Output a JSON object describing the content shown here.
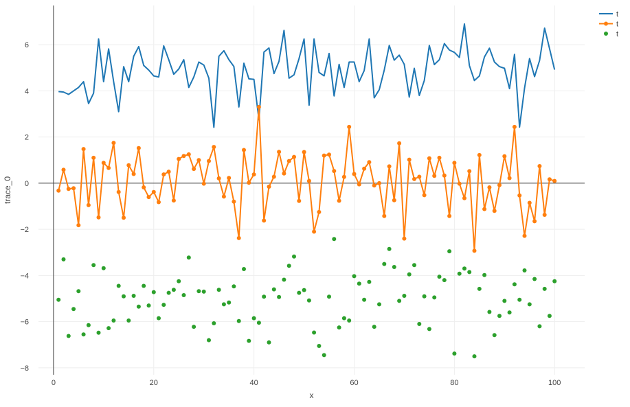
{
  "chart_data": {
    "type": "line",
    "xlabel": "x",
    "ylabel": "trace_0",
    "xlim": [
      -3,
      106
    ],
    "ylim": [
      -8.3,
      7.7
    ],
    "x_ticks": [
      0,
      20,
      40,
      60,
      80,
      100
    ],
    "y_ticks": [
      -8,
      -6,
      -4,
      -2,
      0,
      2,
      4,
      6
    ],
    "grid": true,
    "legend_position": "top-right",
    "series": [
      {
        "name": "t",
        "mode": "lines",
        "color": "#1f77b4",
        "x": [
          1,
          2,
          3,
          4,
          5,
          6,
          7,
          8,
          9,
          10,
          11,
          12,
          13,
          14,
          15,
          16,
          17,
          18,
          19,
          20,
          21,
          22,
          23,
          24,
          25,
          26,
          27,
          28,
          29,
          30,
          31,
          32,
          33,
          34,
          35,
          36,
          37,
          38,
          39,
          40,
          41,
          42,
          43,
          44,
          45,
          46,
          47,
          48,
          49,
          50,
          51,
          52,
          53,
          54,
          55,
          56,
          57,
          58,
          59,
          60,
          61,
          62,
          63,
          64,
          65,
          66,
          67,
          68,
          69,
          70,
          71,
          72,
          73,
          74,
          75,
          76,
          77,
          78,
          79,
          80,
          81,
          82,
          83,
          84,
          85,
          86,
          87,
          88,
          89,
          90,
          91,
          92,
          93,
          94,
          95,
          96,
          97,
          98,
          99,
          100
        ],
        "y": [
          3.97,
          3.95,
          3.85,
          4.0,
          4.15,
          4.4,
          3.45,
          3.9,
          6.25,
          4.4,
          5.82,
          4.4,
          3.1,
          5.05,
          4.4,
          5.5,
          5.92,
          5.1,
          4.9,
          4.65,
          4.6,
          5.95,
          5.35,
          4.72,
          4.95,
          5.35,
          4.15,
          4.6,
          5.25,
          5.12,
          4.55,
          2.42,
          5.5,
          5.74,
          5.35,
          5.06,
          3.3,
          5.2,
          4.52,
          4.5,
          2.75,
          5.68,
          5.86,
          4.75,
          5.28,
          6.62,
          4.55,
          4.7,
          5.4,
          6.25,
          3.38,
          6.25,
          4.8,
          4.65,
          5.62,
          3.78,
          5.15,
          4.15,
          5.25,
          5.25,
          4.4,
          4.88,
          6.25,
          3.7,
          4.05,
          4.9,
          5.97,
          5.33,
          5.55,
          5.15,
          3.73,
          4.98,
          3.8,
          4.45,
          5.97,
          5.14,
          5.35,
          6.05,
          5.77,
          5.67,
          5.45,
          6.9,
          5.1,
          4.45,
          4.65,
          5.47,
          5.85,
          5.25,
          5.05,
          4.98,
          4.1,
          5.58,
          2.43,
          4.12,
          5.4,
          4.62,
          5.32,
          6.72,
          5.83,
          4.92
        ]
      },
      {
        "name": "t",
        "mode": "lines+markers",
        "color": "#ff7f0e",
        "x": [
          1,
          2,
          3,
          4,
          5,
          6,
          7,
          8,
          9,
          10,
          11,
          12,
          13,
          14,
          15,
          16,
          17,
          18,
          19,
          20,
          21,
          22,
          23,
          24,
          25,
          26,
          27,
          28,
          29,
          30,
          31,
          32,
          33,
          34,
          35,
          36,
          37,
          38,
          39,
          40,
          41,
          42,
          43,
          44,
          45,
          46,
          47,
          48,
          49,
          50,
          51,
          52,
          53,
          54,
          55,
          56,
          57,
          58,
          59,
          60,
          61,
          62,
          63,
          64,
          65,
          66,
          67,
          68,
          69,
          70,
          71,
          72,
          73,
          74,
          75,
          76,
          77,
          78,
          79,
          80,
          81,
          82,
          83,
          84,
          85,
          86,
          87,
          88,
          89,
          90,
          91,
          92,
          93,
          94,
          95,
          96,
          97,
          98,
          99,
          100
        ],
        "y": [
          -0.32,
          0.58,
          -0.25,
          -0.22,
          -1.82,
          1.48,
          -0.95,
          1.1,
          -1.48,
          0.88,
          0.66,
          1.75,
          -0.38,
          -1.5,
          0.78,
          0.4,
          1.52,
          -0.18,
          -0.6,
          -0.38,
          -0.82,
          0.38,
          0.5,
          -0.75,
          1.05,
          1.18,
          1.25,
          0.62,
          1.0,
          -0.02,
          0.96,
          1.57,
          0.21,
          -0.58,
          0.23,
          -0.8,
          -2.38,
          1.44,
          0.02,
          0.38,
          3.3,
          -1.62,
          -0.15,
          0.28,
          1.36,
          0.42,
          0.96,
          1.14,
          -0.77,
          1.35,
          0.1,
          -2.1,
          -1.25,
          1.2,
          1.24,
          0.53,
          -0.76,
          0.27,
          2.44,
          0.4,
          -0.05,
          0.63,
          0.91,
          -0.1,
          0.0,
          -1.42,
          0.73,
          -0.74,
          1.73,
          -2.4,
          1.02,
          0.18,
          0.28,
          -0.52,
          1.08,
          0.32,
          1.1,
          0.33,
          -1.42,
          0.88,
          -0.02,
          -0.65,
          0.52,
          -2.93,
          1.22,
          -1.12,
          -0.18,
          -1.2,
          -0.08,
          1.17,
          0.22,
          2.44,
          -0.53,
          -2.28,
          -0.85,
          -1.65,
          0.74,
          -1.37,
          0.17,
          0.1
        ]
      },
      {
        "name": "t",
        "mode": "markers",
        "color": "#2ca02c",
        "x": [
          1,
          2,
          3,
          4,
          5,
          6,
          7,
          8,
          9,
          10,
          11,
          12,
          13,
          14,
          15,
          16,
          17,
          18,
          19,
          20,
          21,
          22,
          23,
          24,
          25,
          26,
          27,
          28,
          29,
          30,
          31,
          32,
          33,
          34,
          35,
          36,
          37,
          38,
          39,
          40,
          41,
          42,
          43,
          44,
          45,
          46,
          47,
          48,
          49,
          50,
          51,
          52,
          53,
          54,
          55,
          56,
          57,
          58,
          59,
          60,
          61,
          62,
          63,
          64,
          65,
          66,
          67,
          68,
          69,
          70,
          71,
          72,
          73,
          74,
          75,
          76,
          77,
          78,
          79,
          80,
          81,
          82,
          83,
          84,
          85,
          86,
          87,
          88,
          89,
          90,
          91,
          92,
          93,
          94,
          95,
          96,
          97,
          98,
          99,
          100
        ],
        "y": [
          -5.05,
          -3.3,
          -6.62,
          -5.45,
          -4.68,
          -6.55,
          -6.15,
          -3.55,
          -6.48,
          -3.68,
          -6.28,
          -5.95,
          -4.45,
          -4.9,
          -5.95,
          -4.88,
          -5.35,
          -4.45,
          -5.3,
          -4.72,
          -5.85,
          -5.27,
          -4.75,
          -4.62,
          -4.25,
          -4.85,
          -3.22,
          -6.22,
          -4.68,
          -4.7,
          -6.8,
          -6.07,
          -4.62,
          -5.25,
          -5.17,
          -4.47,
          -5.97,
          -3.72,
          -6.83,
          -5.85,
          -6.05,
          -4.92,
          -6.9,
          -4.6,
          -4.93,
          -4.18,
          -3.58,
          -3.18,
          -4.75,
          -4.63,
          -5.08,
          -6.47,
          -7.05,
          -7.45,
          -4.92,
          -2.42,
          -6.25,
          -5.85,
          -5.95,
          -4.03,
          -4.35,
          -5.05,
          -4.28,
          -6.22,
          -5.25,
          -3.5,
          -2.85,
          -3.63,
          -5.1,
          -4.88,
          -3.95,
          -3.55,
          -6.1,
          -4.9,
          -6.32,
          -4.95,
          -4.05,
          -4.2,
          -2.95,
          -7.38,
          -3.92,
          -3.7,
          -3.85,
          -7.5,
          -4.58,
          -3.98,
          -5.58,
          -6.58,
          -5.75,
          -5.1,
          -5.6,
          -4.38,
          -5.05,
          -3.78,
          -5.25,
          -4.15,
          -6.2,
          -4.58,
          -5.75,
          -4.25
        ]
      }
    ]
  }
}
